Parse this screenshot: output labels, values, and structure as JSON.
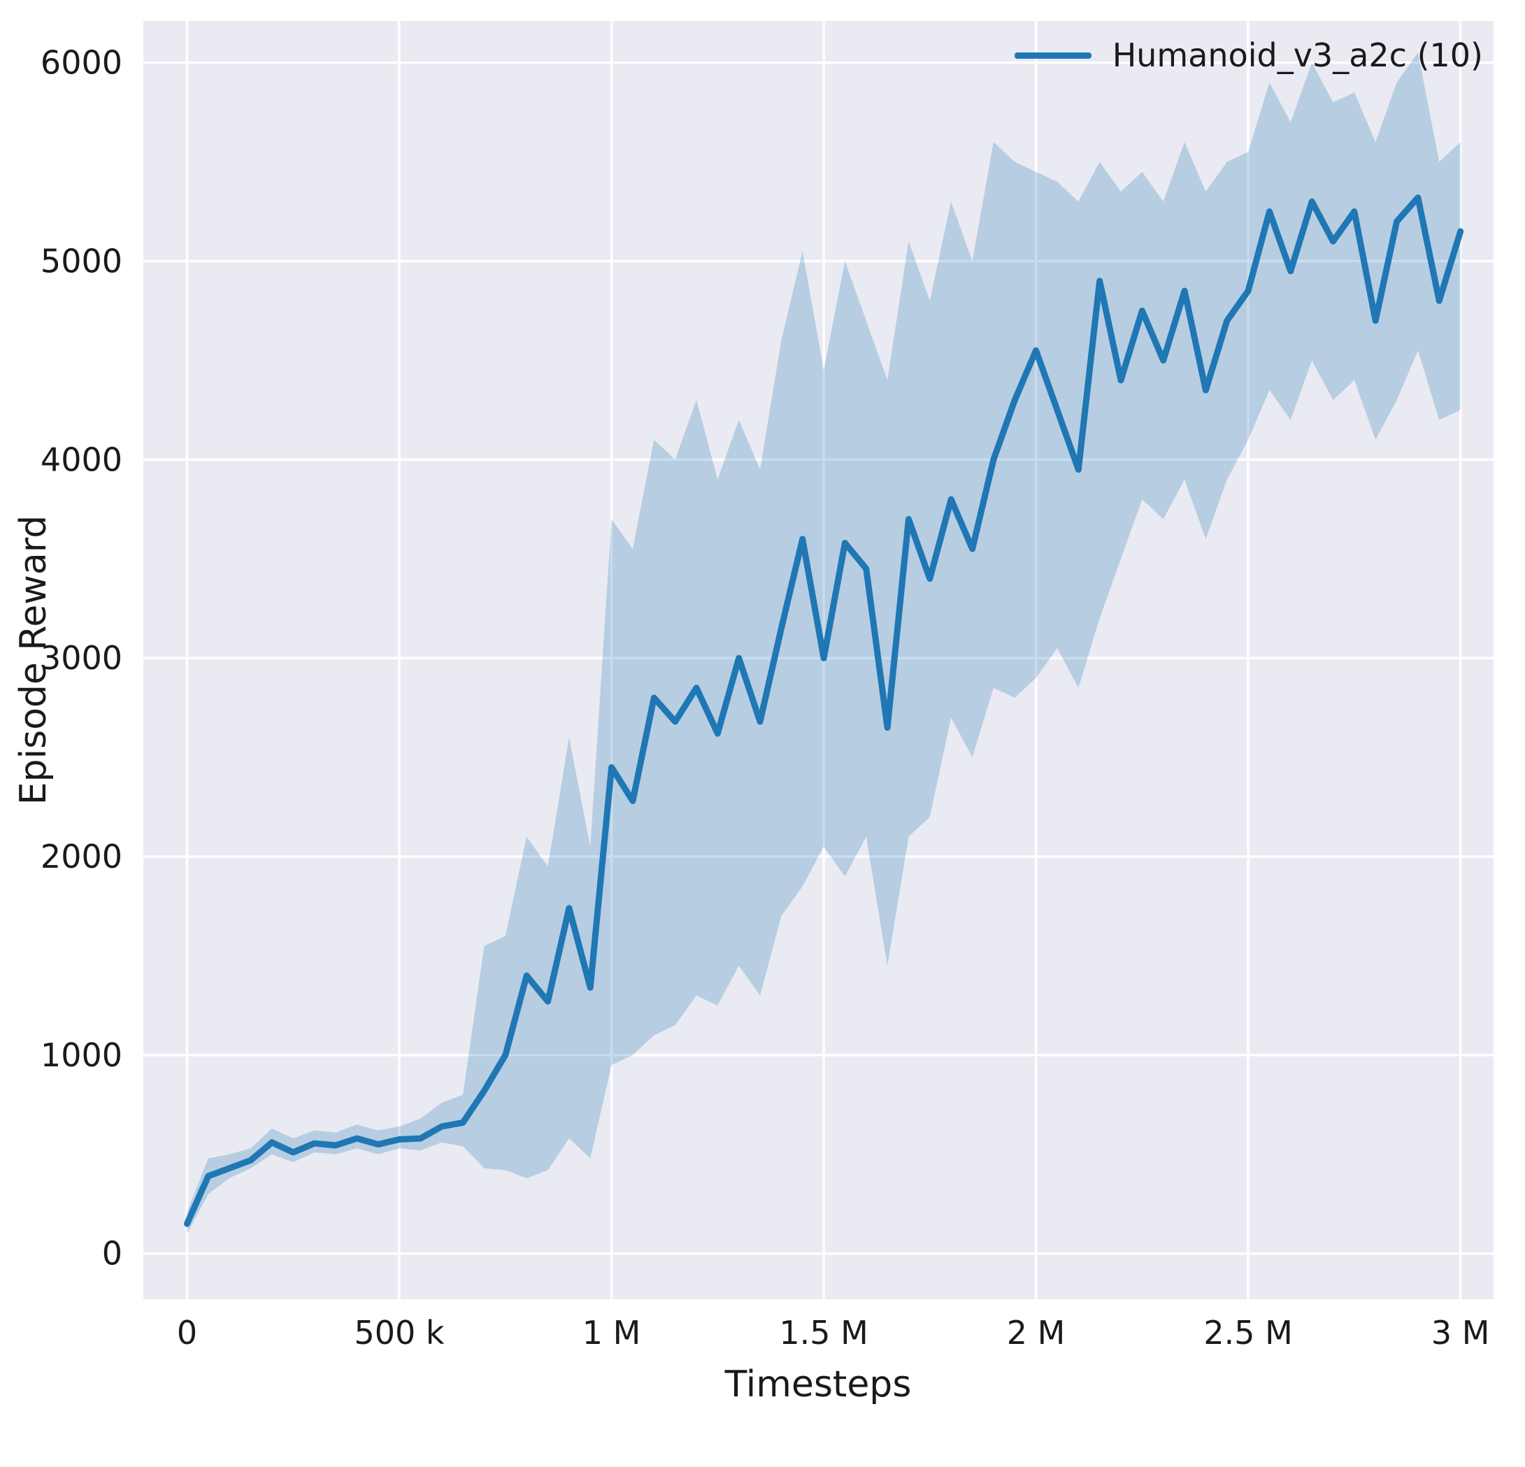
{
  "chart": {
    "legend": [
      {
        "label": "Humanoid_v3_a2c (10)",
        "color": "#1f77b4"
      }
    ]
  },
  "chart_data": {
    "type": "line",
    "title": "",
    "xlabel": "Timesteps",
    "ylabel": "Episode Reward",
    "grid": true,
    "legend_position": "upper right",
    "background": "#eaeaf2",
    "grid_color": "#ffffff",
    "xlim": [
      -103000,
      3078000
    ],
    "ylim": [
      -230,
      6210
    ],
    "xticks": {
      "values": [
        0,
        500000,
        1000000,
        1500000,
        2000000,
        2500000,
        3000000
      ],
      "labels": [
        "0",
        "500 k",
        "1 M",
        "1.5 M",
        "2 M",
        "2.5 M",
        "3 M"
      ]
    },
    "yticks": {
      "values": [
        0,
        1000,
        2000,
        3000,
        4000,
        5000,
        6000
      ],
      "labels": [
        "0",
        "1000",
        "2000",
        "3000",
        "4000",
        "5000",
        "6000"
      ]
    },
    "series": [
      {
        "name": "Humanoid_v3_a2c (10)",
        "color": "#1f77b4",
        "band_fill": "rgba(31,119,180,0.25)",
        "x": [
          0,
          50000,
          100000,
          150000,
          200000,
          250000,
          300000,
          350000,
          400000,
          450000,
          500000,
          550000,
          600000,
          650000,
          700000,
          750000,
          800000,
          850000,
          900000,
          950000,
          1000000,
          1050000,
          1100000,
          1150000,
          1200000,
          1250000,
          1300000,
          1350000,
          1400000,
          1450000,
          1500000,
          1550000,
          1600000,
          1650000,
          1700000,
          1750000,
          1800000,
          1850000,
          1900000,
          1950000,
          2000000,
          2050000,
          2100000,
          2150000,
          2200000,
          2250000,
          2300000,
          2350000,
          2400000,
          2450000,
          2500000,
          2550000,
          2600000,
          2650000,
          2700000,
          2750000,
          2800000,
          2850000,
          2900000,
          2950000,
          3000000
        ],
        "mean": [
          150,
          390,
          430,
          470,
          560,
          510,
          555,
          545,
          580,
          550,
          575,
          580,
          640,
          660,
          820,
          1000,
          1400,
          1270,
          1740,
          1340,
          2450,
          2280,
          2800,
          2680,
          2850,
          2620,
          3000,
          2680,
          3150,
          3600,
          3000,
          3580,
          3450,
          2650,
          3700,
          3400,
          3800,
          3550,
          4000,
          4300,
          4550,
          4250,
          3950,
          4900,
          4400,
          4750,
          4500,
          4850,
          4350,
          4700,
          4850,
          5250,
          4950,
          5300,
          5100,
          5250,
          4700,
          5200,
          5320,
          4800,
          5150
        ],
        "band_lower": [
          100,
          300,
          380,
          430,
          500,
          460,
          510,
          500,
          530,
          500,
          530,
          520,
          560,
          540,
          430,
          420,
          380,
          420,
          580,
          480,
          950,
          1000,
          1100,
          1150,
          1300,
          1250,
          1450,
          1300,
          1700,
          1850,
          2050,
          1900,
          2100,
          1450,
          2100,
          2200,
          2700,
          2500,
          2850,
          2800,
          2900,
          3050,
          2850,
          3200,
          3500,
          3800,
          3700,
          3900,
          3600,
          3900,
          4100,
          4350,
          4200,
          4500,
          4300,
          4400,
          4100,
          4300,
          4550,
          4200,
          4250
        ],
        "band_upper": [
          210,
          480,
          500,
          530,
          630,
          580,
          620,
          610,
          650,
          620,
          640,
          680,
          760,
          800,
          1550,
          1600,
          2100,
          1950,
          2600,
          2050,
          3700,
          3550,
          4100,
          4000,
          4300,
          3900,
          4200,
          3950,
          4600,
          5050,
          4450,
          5000,
          4700,
          4400,
          5100,
          4800,
          5300,
          5000,
          5600,
          5500,
          5450,
          5400,
          5300,
          5500,
          5350,
          5450,
          5300,
          5600,
          5350,
          5500,
          5550,
          5900,
          5700,
          6000,
          5800,
          5850,
          5600,
          5900,
          6050,
          5500,
          5600
        ]
      }
    ]
  }
}
